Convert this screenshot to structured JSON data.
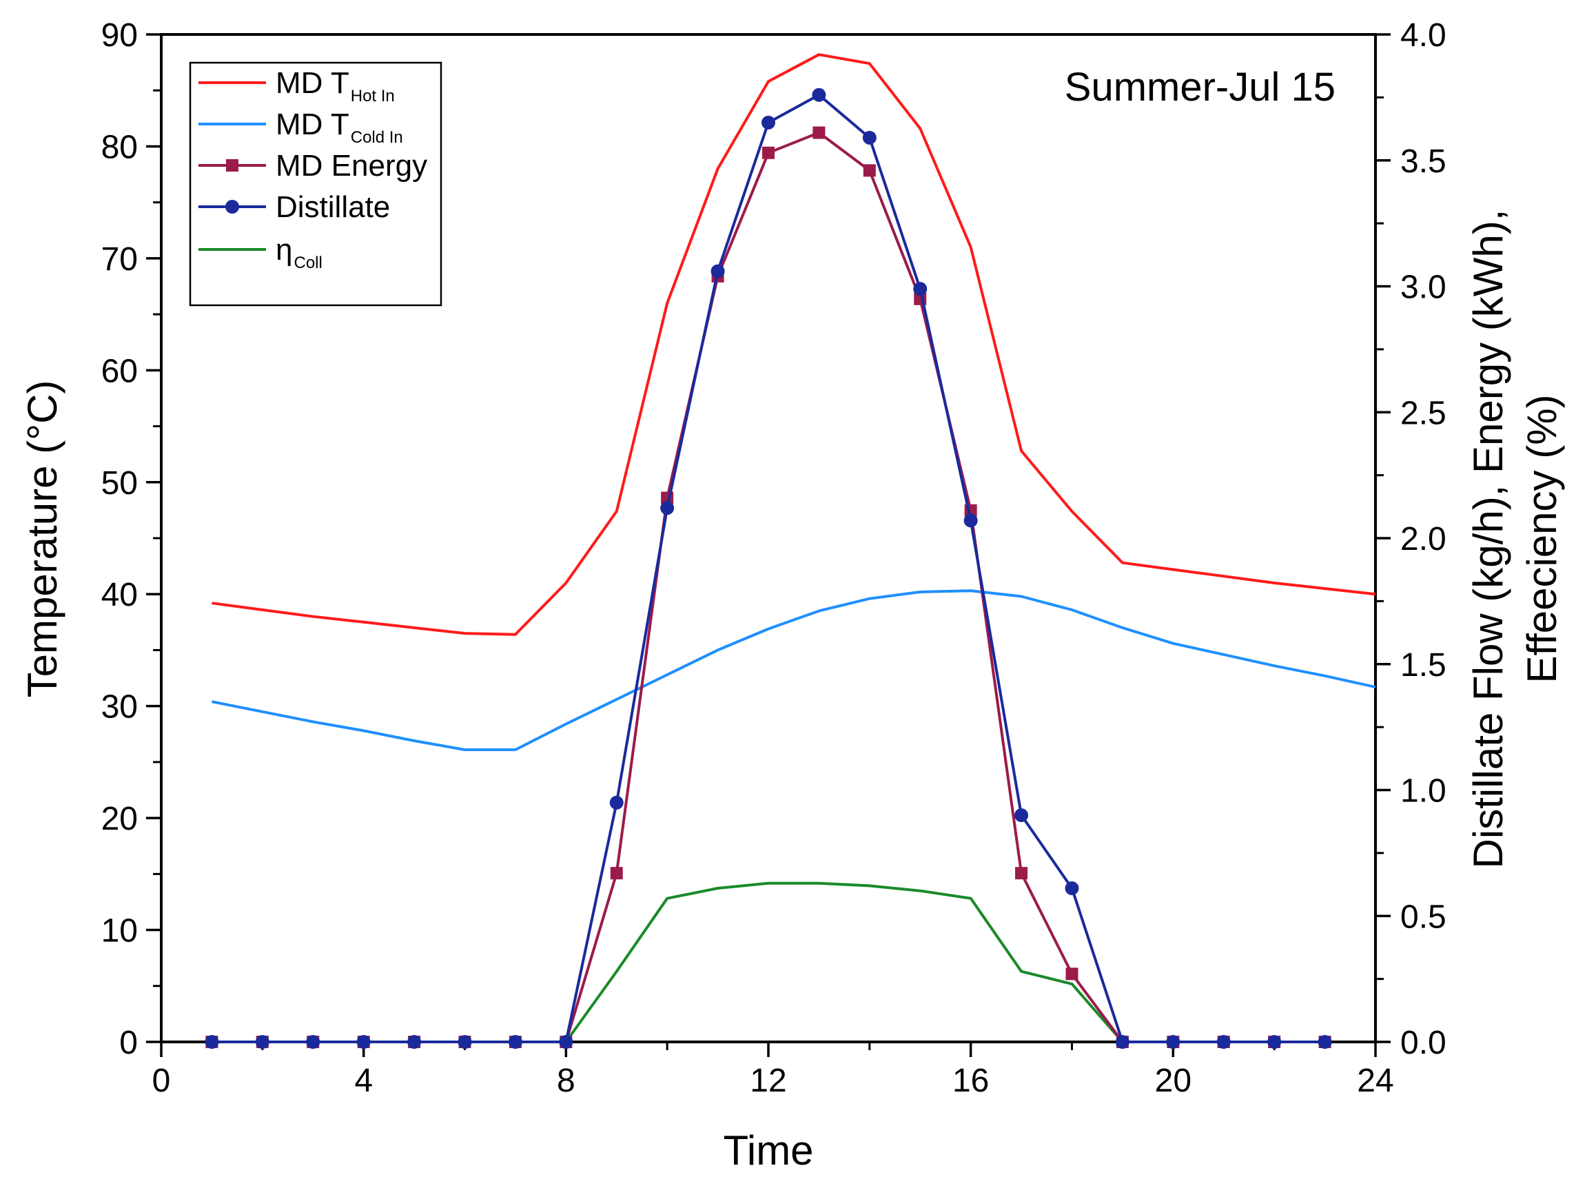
{
  "chart_data": {
    "type": "line",
    "annotation": "Summer-Jul 15",
    "xlabel": "Time",
    "ylabel_left": "Temperature (°C)",
    "ylabel_right_line1": "Distillate Flow (kg/h), Energy (kWh),",
    "ylabel_right_line2": "Effeeciency (%)",
    "xlim": [
      0,
      24
    ],
    "ylim_left": [
      0,
      90
    ],
    "ylim_right": [
      0,
      4.0
    ],
    "x_ticks": [
      "0",
      "4",
      "8",
      "12",
      "16",
      "20",
      "24"
    ],
    "y_left_ticks": [
      "0",
      "10",
      "20",
      "30",
      "40",
      "50",
      "60",
      "70",
      "80",
      "90"
    ],
    "y_right_ticks": [
      "0.0",
      "0.5",
      "1.0",
      "1.5",
      "2.0",
      "2.5",
      "3.0",
      "3.5",
      "4.0"
    ],
    "legend_placement": "top-left",
    "series": [
      {
        "name": "MD T",
        "subscript": "Hot In",
        "axis": "left",
        "color": "#ff1a1a",
        "marker": "none",
        "x": [
          1,
          2,
          3,
          4,
          5,
          6,
          7,
          8,
          9,
          10,
          11,
          12,
          13,
          14,
          15,
          16,
          17,
          18,
          19,
          20,
          21,
          22,
          23,
          24
        ],
        "values": [
          39.2,
          38.6,
          38.0,
          37.5,
          37.0,
          36.5,
          36.4,
          41.0,
          47.4,
          66.0,
          78.0,
          85.8,
          88.2,
          87.4,
          81.6,
          71.0,
          52.8,
          47.4,
          42.8,
          42.2,
          41.6,
          41.0,
          40.5,
          40.0
        ]
      },
      {
        "name": "MD T",
        "subscript": "Cold In",
        "axis": "left",
        "color": "#1e90ff",
        "marker": "none",
        "x": [
          1,
          2,
          3,
          4,
          5,
          6,
          7,
          8,
          9,
          10,
          11,
          12,
          13,
          14,
          15,
          16,
          17,
          18,
          19,
          20,
          21,
          22,
          23,
          24
        ],
        "values": [
          30.4,
          29.5,
          28.6,
          27.8,
          26.9,
          26.1,
          26.1,
          28.4,
          30.6,
          32.8,
          35.0,
          36.9,
          38.5,
          39.6,
          40.2,
          40.3,
          39.8,
          38.6,
          37.0,
          35.6,
          34.6,
          33.6,
          32.7,
          31.7
        ]
      },
      {
        "name": "MD Energy",
        "axis": "right",
        "color": "#9b1b4a",
        "marker": "square",
        "x": [
          1,
          2,
          3,
          4,
          5,
          6,
          7,
          8,
          9,
          10,
          11,
          12,
          13,
          14,
          15,
          16,
          17,
          18,
          19,
          20,
          21,
          22,
          23
        ],
        "values": [
          0,
          0,
          0,
          0,
          0,
          0,
          0,
          0,
          0.67,
          2.16,
          3.04,
          3.53,
          3.61,
          3.46,
          2.95,
          2.11,
          0.67,
          0.27,
          0,
          0,
          0,
          0,
          0
        ]
      },
      {
        "name": "Distillate",
        "axis": "right",
        "color": "#1a2a9c",
        "marker": "circle",
        "x": [
          1,
          2,
          3,
          4,
          5,
          6,
          7,
          8,
          9,
          10,
          11,
          12,
          13,
          14,
          15,
          16,
          17,
          18,
          19,
          20,
          21,
          22,
          23
        ],
        "values": [
          0,
          0,
          0,
          0,
          0,
          0,
          0,
          0,
          0.95,
          2.12,
          3.06,
          3.65,
          3.76,
          3.59,
          2.99,
          2.07,
          0.9,
          0.61,
          0,
          0,
          0,
          0,
          0
        ]
      },
      {
        "name": "η",
        "subscript": "Coll",
        "axis": "right",
        "color": "#1a8a2a",
        "marker": "none",
        "x": [
          8,
          9,
          10,
          11,
          12,
          13,
          14,
          15,
          16,
          17,
          18,
          19
        ],
        "values": [
          0,
          0.28,
          0.57,
          0.61,
          0.63,
          0.63,
          0.62,
          0.6,
          0.57,
          0.28,
          0.23,
          0
        ]
      }
    ]
  }
}
